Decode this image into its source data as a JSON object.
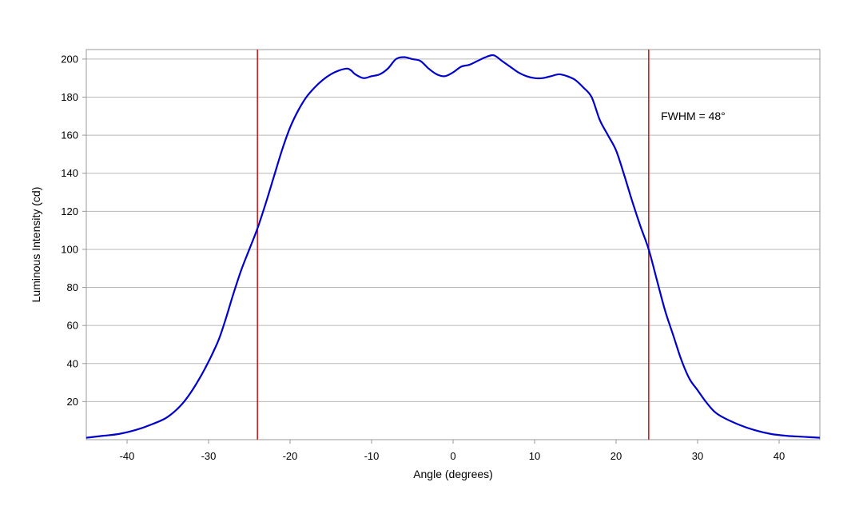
{
  "chart_data": {
    "type": "line",
    "xlabel": "Angle (degrees)",
    "ylabel": "Luminous Intensity (cd)",
    "xlim": [
      -45,
      45
    ],
    "ylim": [
      0,
      205
    ],
    "x_ticks": [
      -40,
      -30,
      -20,
      -10,
      0,
      10,
      20,
      30,
      40
    ],
    "y_ticks": [
      20,
      40,
      60,
      80,
      100,
      120,
      140,
      160,
      180,
      200
    ],
    "grid": "horizontal",
    "series": [
      {
        "color": "#0000cc",
        "x": [
          -45,
          -43,
          -41,
          -39,
          -37,
          -35,
          -33,
          -31,
          -29,
          -28,
          -27,
          -26,
          -25,
          -24,
          -23,
          -22,
          -21,
          -20,
          -19,
          -18,
          -17,
          -16,
          -15,
          -14,
          -13,
          -12.5,
          -12,
          -11,
          -10,
          -9,
          -8,
          -7,
          -6,
          -5,
          -4,
          -3,
          -2,
          -1,
          0,
          1,
          2,
          3,
          4,
          5,
          6,
          7,
          8,
          9,
          10,
          11,
          12,
          13,
          14,
          15,
          16,
          17,
          18,
          19,
          20,
          21,
          22,
          23,
          24,
          25,
          26,
          27,
          28,
          29,
          30,
          31,
          32,
          33,
          35,
          37,
          39,
          41,
          43,
          45
        ],
        "y": [
          1,
          2,
          3,
          5,
          8,
          12,
          20,
          33,
          50,
          62,
          76,
          89,
          100,
          111,
          124,
          138,
          152,
          164,
          173,
          180,
          185,
          189,
          192,
          194,
          195,
          194,
          192,
          190,
          191,
          192,
          195,
          200,
          201,
          200,
          199,
          195,
          192,
          191,
          193,
          196,
          197,
          199,
          201,
          202,
          199,
          196,
          193,
          191,
          190,
          190,
          191,
          192,
          191,
          189,
          185,
          180,
          168,
          160,
          152,
          139,
          125,
          112,
          100,
          84,
          68,
          55,
          42,
          32,
          26,
          20,
          15,
          12,
          8,
          5,
          3,
          2,
          1.5,
          1
        ]
      }
    ],
    "vlines": [
      {
        "x": -24,
        "color": "#cc2222"
      },
      {
        "x": 24,
        "color": "#cc2222"
      }
    ],
    "annotations": [
      {
        "text": "FWHM = 48°",
        "x": 25.5,
        "y": 168
      }
    ]
  }
}
